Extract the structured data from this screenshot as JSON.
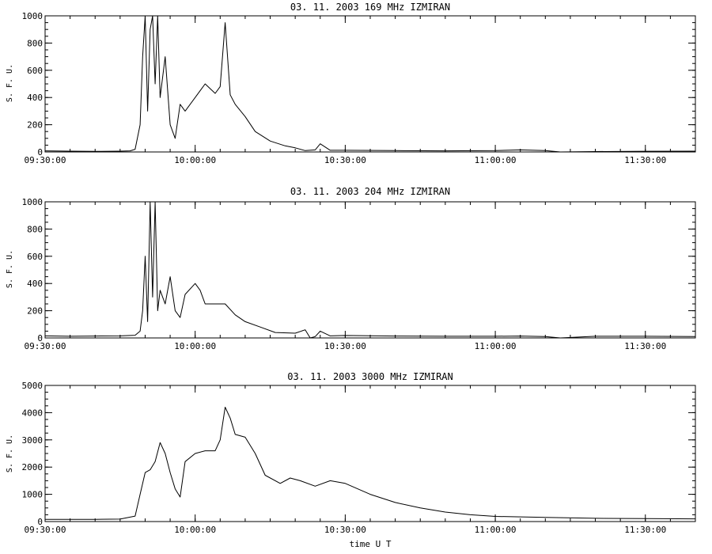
{
  "chart_data": [
    {
      "type": "line",
      "title": "03.  11.  2003    169 MHz    IZMIRAN",
      "ylabel": "S. F. U.",
      "xlabel": "",
      "xlim": [
        "09:30:00",
        "11:40:00"
      ],
      "ylim": [
        0,
        1000
      ],
      "yticks": [
        0,
        200,
        400,
        600,
        800,
        1000
      ],
      "xticks": [
        "09:30:00",
        "10:00:00",
        "10:30:00",
        "11:00:00",
        "11:30:00"
      ],
      "grid": false,
      "series": [
        {
          "values": [
            [
              "09:30:00",
              8
            ],
            [
              "09:35:00",
              6
            ],
            [
              "09:40:00",
              4
            ],
            [
              "09:45:00",
              6
            ],
            [
              "09:47:00",
              8
            ],
            [
              "09:48:00",
              20
            ],
            [
              "09:49:00",
              200
            ],
            [
              "09:49:30",
              700
            ],
            [
              "09:50:00",
              1000
            ],
            [
              "09:50:30",
              300
            ],
            [
              "09:51:00",
              900
            ],
            [
              "09:51:30",
              1000
            ],
            [
              "09:52:00",
              500
            ],
            [
              "09:52:30",
              1000
            ],
            [
              "09:53:00",
              400
            ],
            [
              "09:54:00",
              700
            ],
            [
              "09:55:00",
              200
            ],
            [
              "09:56:00",
              100
            ],
            [
              "09:57:00",
              350
            ],
            [
              "09:58:00",
              300
            ],
            [
              "10:00:00",
              400
            ],
            [
              "10:02:00",
              500
            ],
            [
              "10:04:00",
              430
            ],
            [
              "10:05:00",
              480
            ],
            [
              "10:06:00",
              950
            ],
            [
              "10:07:00",
              420
            ],
            [
              "10:08:00",
              350
            ],
            [
              "10:10:00",
              260
            ],
            [
              "10:12:00",
              150
            ],
            [
              "10:15:00",
              80
            ],
            [
              "10:18:00",
              45
            ],
            [
              "10:20:00",
              30
            ],
            [
              "10:22:00",
              10
            ],
            [
              "10:24:00",
              15
            ],
            [
              "10:25:00",
              60
            ],
            [
              "10:27:00",
              12
            ],
            [
              "10:30:00",
              12
            ],
            [
              "10:40:00",
              10
            ],
            [
              "10:50:00",
              8
            ],
            [
              "11:00:00",
              10
            ],
            [
              "11:05:00",
              15
            ],
            [
              "11:10:00",
              10
            ],
            [
              "11:13:00",
              0
            ],
            [
              "11:20:00",
              3
            ],
            [
              "11:30:00",
              5
            ],
            [
              "11:40:00",
              6
            ]
          ]
        }
      ]
    },
    {
      "type": "line",
      "title": "03.  11.  2003    204 MHz    IZMIRAN",
      "ylabel": "S. F. U.",
      "xlabel": "",
      "xlim": [
        "09:30:00",
        "11:40:00"
      ],
      "ylim": [
        0,
        1000
      ],
      "yticks": [
        0,
        200,
        400,
        600,
        800,
        1000
      ],
      "xticks": [
        "09:30:00",
        "10:00:00",
        "10:30:00",
        "11:00:00",
        "11:30:00"
      ],
      "grid": false,
      "series": [
        {
          "values": [
            [
              "09:30:00",
              15
            ],
            [
              "09:35:00",
              12
            ],
            [
              "09:40:00",
              14
            ],
            [
              "09:45:00",
              15
            ],
            [
              "09:48:00",
              20
            ],
            [
              "09:49:00",
              50
            ],
            [
              "09:49:30",
              200
            ],
            [
              "09:50:00",
              600
            ],
            [
              "09:50:30",
              120
            ],
            [
              "09:51:00",
              1000
            ],
            [
              "09:51:30",
              300
            ],
            [
              "09:52:00",
              1000
            ],
            [
              "09:52:30",
              200
            ],
            [
              "09:53:00",
              350
            ],
            [
              "09:54:00",
              250
            ],
            [
              "09:55:00",
              450
            ],
            [
              "09:56:00",
              200
            ],
            [
              "09:57:00",
              150
            ],
            [
              "09:58:00",
              320
            ],
            [
              "10:00:00",
              400
            ],
            [
              "10:01:00",
              350
            ],
            [
              "10:02:00",
              250
            ],
            [
              "10:04:00",
              250
            ],
            [
              "10:06:00",
              250
            ],
            [
              "10:08:00",
              170
            ],
            [
              "10:10:00",
              120
            ],
            [
              "10:13:00",
              80
            ],
            [
              "10:16:00",
              40
            ],
            [
              "10:20:00",
              35
            ],
            [
              "10:22:00",
              60
            ],
            [
              "10:23:00",
              0
            ],
            [
              "10:24:00",
              10
            ],
            [
              "10:25:00",
              50
            ],
            [
              "10:27:00",
              15
            ],
            [
              "10:30:00",
              18
            ],
            [
              "10:40:00",
              14
            ],
            [
              "10:50:00",
              12
            ],
            [
              "11:00:00",
              12
            ],
            [
              "11:05:00",
              14
            ],
            [
              "11:10:00",
              10
            ],
            [
              "11:13:00",
              0
            ],
            [
              "11:20:00",
              12
            ],
            [
              "11:30:00",
              12
            ],
            [
              "11:40:00",
              10
            ]
          ]
        }
      ]
    },
    {
      "type": "line",
      "title": "03.  11.  2003    3000 MHz    IZMIRAN",
      "ylabel": "S. F. U.",
      "xlabel": "time  U T",
      "xlim": [
        "09:30:00",
        "11:40:00"
      ],
      "ylim": [
        0,
        5000
      ],
      "yticks": [
        0,
        1000,
        2000,
        3000,
        4000,
        5000
      ],
      "xticks": [
        "09:30:00",
        "10:00:00",
        "10:30:00",
        "11:00:00",
        "11:30:00"
      ],
      "grid": false,
      "series": [
        {
          "values": [
            [
              "09:30:00",
              80
            ],
            [
              "09:40:00",
              80
            ],
            [
              "09:45:00",
              90
            ],
            [
              "09:48:00",
              200
            ],
            [
              "09:49:00",
              1000
            ],
            [
              "09:50:00",
              1800
            ],
            [
              "09:51:00",
              1900
            ],
            [
              "09:52:00",
              2200
            ],
            [
              "09:53:00",
              2900
            ],
            [
              "09:54:00",
              2500
            ],
            [
              "09:55:00",
              1800
            ],
            [
              "09:56:00",
              1200
            ],
            [
              "09:57:00",
              900
            ],
            [
              "09:58:00",
              2200
            ],
            [
              "10:00:00",
              2500
            ],
            [
              "10:02:00",
              2600
            ],
            [
              "10:04:00",
              2600
            ],
            [
              "10:05:00",
              3000
            ],
            [
              "10:06:00",
              4200
            ],
            [
              "10:07:00",
              3800
            ],
            [
              "10:08:00",
              3200
            ],
            [
              "10:10:00",
              3100
            ],
            [
              "10:12:00",
              2500
            ],
            [
              "10:14:00",
              1700
            ],
            [
              "10:17:00",
              1400
            ],
            [
              "10:19:00",
              1600
            ],
            [
              "10:21:00",
              1500
            ],
            [
              "10:24:00",
              1300
            ],
            [
              "10:27:00",
              1500
            ],
            [
              "10:30:00",
              1400
            ],
            [
              "10:35:00",
              1000
            ],
            [
              "10:40:00",
              700
            ],
            [
              "10:45:00",
              500
            ],
            [
              "10:50:00",
              350
            ],
            [
              "10:55:00",
              250
            ],
            [
              "11:00:00",
              190
            ],
            [
              "11:10:00",
              150
            ],
            [
              "11:20:00",
              120
            ],
            [
              "11:30:00",
              110
            ],
            [
              "11:40:00",
              100
            ]
          ]
        }
      ]
    }
  ]
}
